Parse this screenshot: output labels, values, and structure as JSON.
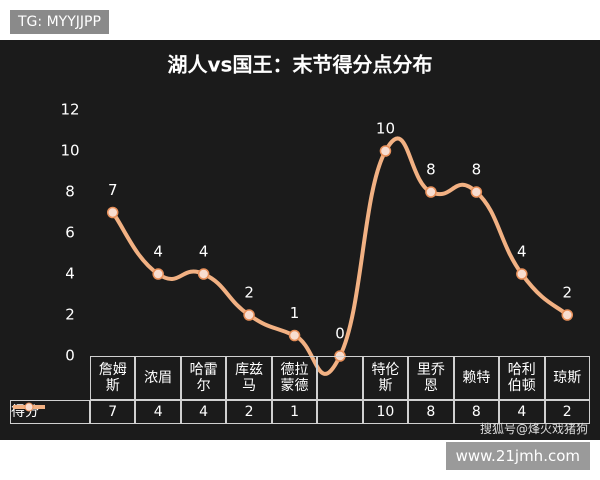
{
  "watermark_top": "TG: MYYJJPP",
  "chart_data": {
    "type": "line",
    "title": "湖人vs国王：末节得分点分布",
    "categories": [
      "詹姆斯",
      "浓眉",
      "哈雷尔",
      "库兹马",
      "德拉蒙德",
      null,
      "特伦斯",
      "里乔恩",
      "赖特",
      "哈利伯顿",
      "琼斯"
    ],
    "series": [
      {
        "name": "得分",
        "color": "#f2b183",
        "values": [
          7,
          4,
          4,
          2,
          1,
          0,
          10,
          8,
          8,
          4,
          2
        ]
      }
    ],
    "ylim": [
      0,
      12
    ],
    "yticks": [
      0,
      2,
      4,
      6,
      8,
      10,
      12
    ],
    "grid": false,
    "data_table": true
  },
  "watermark_source": "搜狐号@烽火戏猪狗",
  "watermark_site": "www.21jmh.com"
}
